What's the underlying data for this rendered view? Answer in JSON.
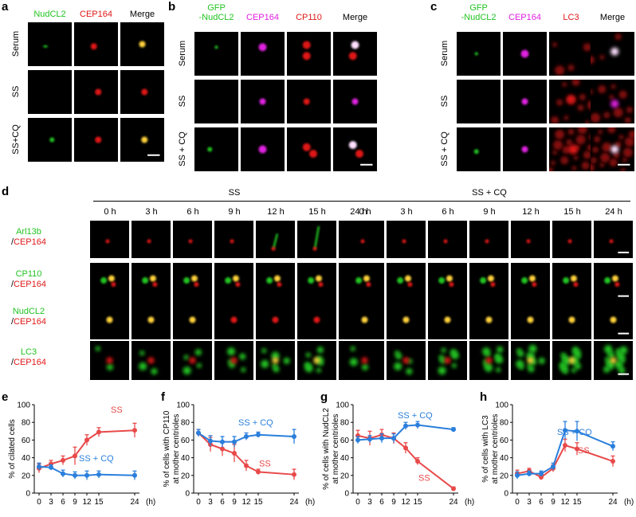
{
  "panels": {
    "a": {
      "label": "a",
      "headers": [
        "NudCL2",
        "CEP164",
        "Merge"
      ],
      "header_colors": [
        "#22c422",
        "#e01818",
        "#000000"
      ],
      "rows": [
        "Serum",
        "SS",
        "SS+CQ"
      ]
    },
    "b": {
      "label": "b",
      "headers": [
        "GFP\n-NudCL2",
        "CEP164",
        "CP110",
        "Merge"
      ],
      "header_colors": [
        "#22c422",
        "#e020e0",
        "#e01818",
        "#000000"
      ],
      "rows": [
        "Serum",
        "SS",
        "SS + CQ"
      ]
    },
    "c": {
      "label": "c",
      "headers": [
        "GFP\n-NudCL2",
        "CEP164",
        "LC3",
        "Merge"
      ],
      "header_colors": [
        "#22c422",
        "#e020e0",
        "#e01818",
        "#000000"
      ],
      "rows": [
        "Serum",
        "SS",
        "SS + CQ"
      ]
    },
    "d": {
      "label": "d",
      "groups": [
        "SS",
        "SS + CQ"
      ],
      "times": [
        "0 h",
        "3 h",
        "6 h",
        "9 h",
        "12 h",
        "15 h",
        "24 h"
      ],
      "rows": [
        {
          "top": "Arl13b",
          "bottom": "/CEP164"
        },
        {
          "top": "CP110",
          "bottom": "/CEP164"
        },
        {
          "top": "NudCL2",
          "bottom": "/CEP164"
        },
        {
          "top": "LC3",
          "bottom": "/CEP164"
        }
      ]
    }
  },
  "colors": {
    "green": "#22c422",
    "red": "#e01818",
    "magenta": "#e020e0",
    "ss": "#e84a4a",
    "sscq": "#2a7fdc"
  },
  "chart_data": [
    {
      "panel": "e",
      "type": "line",
      "ylabel": "% of cilated cells",
      "xunit": "(h)",
      "x": [
        0,
        3,
        6,
        9,
        12,
        15,
        24
      ],
      "ylim": [
        0,
        100
      ],
      "yticks": [
        0,
        20,
        40,
        60,
        80,
        100
      ],
      "series": [
        {
          "name": "SS",
          "values": [
            28,
            33,
            37,
            42,
            60,
            69,
            71
          ],
          "errors": [
            5,
            4,
            5,
            10,
            6,
            5,
            8
          ]
        },
        {
          "name": "SS + CQ",
          "values": [
            30,
            29,
            22,
            20,
            20,
            21,
            20
          ],
          "errors": [
            4,
            3,
            4,
            4,
            5,
            4,
            5
          ]
        }
      ]
    },
    {
      "panel": "f",
      "type": "line",
      "ylabel": "% of cells with CP110\nat mother centrioles",
      "xunit": "(h)",
      "x": [
        0,
        3,
        6,
        9,
        12,
        15,
        24
      ],
      "ylim": [
        0,
        100
      ],
      "yticks": [
        0,
        20,
        40,
        60,
        80,
        100
      ],
      "series": [
        {
          "name": "SS",
          "values": [
            68,
            55,
            50,
            45,
            31,
            24,
            21
          ],
          "errors": [
            4,
            8,
            8,
            10,
            6,
            3,
            6
          ]
        },
        {
          "name": "SS + CQ",
          "values": [
            68,
            59,
            58,
            58,
            64,
            66,
            64
          ],
          "errors": [
            4,
            6,
            6,
            6,
            4,
            3,
            8
          ]
        }
      ]
    },
    {
      "panel": "g",
      "type": "line",
      "ylabel": "% of cells with NudCL2\nat mother centrioles",
      "xunit": "(h)",
      "x": [
        0,
        3,
        6,
        9,
        12,
        15,
        24
      ],
      "ylim": [
        0,
        100
      ],
      "yticks": [
        0,
        20,
        40,
        60,
        80,
        100
      ],
      "series": [
        {
          "name": "SS",
          "values": [
            65,
            62,
            66,
            62,
            51,
            36,
            5
          ],
          "errors": [
            6,
            8,
            6,
            6,
            6,
            4,
            2
          ]
        },
        {
          "name": "SS + CQ",
          "values": [
            60,
            61,
            62,
            62,
            76,
            77,
            72
          ],
          "errors": [
            4,
            4,
            5,
            5,
            4,
            4,
            2
          ]
        }
      ]
    },
    {
      "panel": "h",
      "type": "line",
      "ylabel": "% of cells with LC3\nat mother centrioles",
      "xunit": "(h)",
      "x": [
        0,
        3,
        6,
        9,
        12,
        15,
        24
      ],
      "ylim": [
        0,
        100
      ],
      "yticks": [
        0,
        20,
        40,
        60,
        80,
        100
      ],
      "series": [
        {
          "name": "SS",
          "values": [
            22,
            25,
            18,
            28,
            54,
            50,
            36
          ],
          "errors": [
            4,
            3,
            3,
            4,
            7,
            7,
            6
          ]
        },
        {
          "name": "SS + CQ",
          "values": [
            20,
            22,
            22,
            30,
            71,
            70,
            53
          ],
          "errors": [
            4,
            3,
            3,
            4,
            10,
            11,
            5
          ]
        }
      ]
    }
  ]
}
